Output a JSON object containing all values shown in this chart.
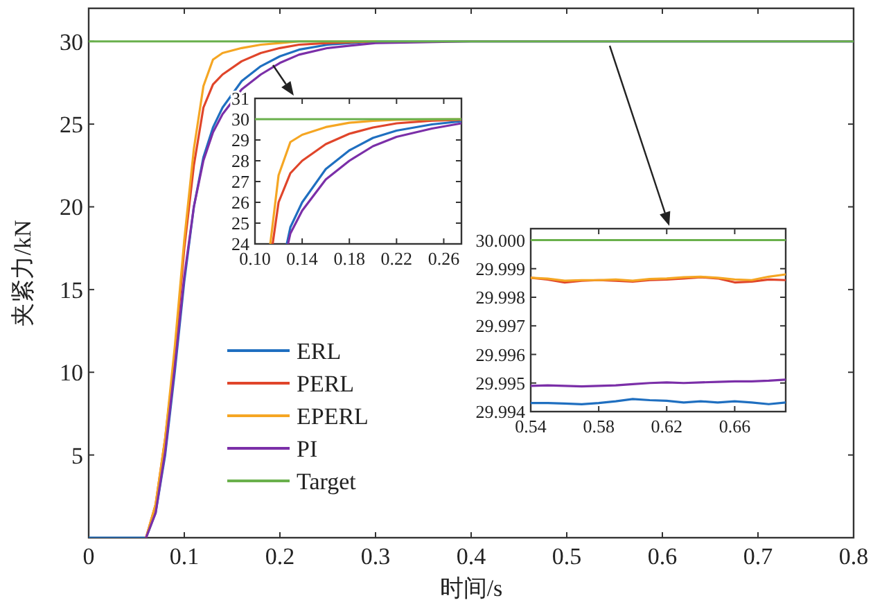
{
  "chart_data": [
    {
      "type": "line",
      "xlabel": "时间/s",
      "ylabel": "夹紧力/kN",
      "xlim": [
        0,
        0.8
      ],
      "ylim": [
        0,
        32
      ],
      "xticks": [
        0,
        0.1,
        0.2,
        0.3,
        0.4,
        0.5,
        0.6,
        0.7,
        0.8
      ],
      "yticks": [
        5,
        10,
        15,
        20,
        25,
        30
      ],
      "grid": false,
      "legend": "bottom left",
      "marker": "none",
      "line_style": "solid",
      "series": [
        {
          "name": "ERL",
          "color": "#1f6fc0",
          "x": [
            0,
            0.06,
            0.07,
            0.08,
            0.09,
            0.1,
            0.11,
            0.12,
            0.13,
            0.14,
            0.16,
            0.18,
            0.2,
            0.22,
            0.25,
            0.3,
            0.4,
            0.8
          ],
          "values": [
            0,
            0,
            1.5,
            5,
            10,
            15.5,
            20,
            23,
            24.8,
            26,
            27.6,
            28.5,
            29.1,
            29.5,
            29.8,
            30,
            30,
            30
          ]
        },
        {
          "name": "PERL",
          "color": "#e0452a",
          "x": [
            0.06,
            0.07,
            0.08,
            0.09,
            0.1,
            0.11,
            0.12,
            0.13,
            0.14,
            0.16,
            0.18,
            0.2,
            0.22,
            0.25,
            0.3
          ],
          "values": [
            0,
            2,
            6,
            11,
            17.5,
            22.5,
            26,
            27.4,
            28,
            28.8,
            29.3,
            29.6,
            29.8,
            29.9,
            30
          ]
        },
        {
          "name": "EPERL",
          "color": "#f5a623",
          "x": [
            0.06,
            0.07,
            0.08,
            0.09,
            0.1,
            0.11,
            0.12,
            0.13,
            0.14,
            0.16,
            0.18,
            0.2,
            0.22,
            0.25,
            0.3
          ],
          "values": [
            0,
            2,
            6,
            11.5,
            18,
            23.5,
            27.3,
            28.9,
            29.3,
            29.6,
            29.8,
            29.9,
            30,
            30,
            30
          ]
        },
        {
          "name": "PI",
          "color": "#7b2fa8",
          "x": [
            0.06,
            0.07,
            0.08,
            0.09,
            0.1,
            0.11,
            0.12,
            0.13,
            0.14,
            0.16,
            0.18,
            0.2,
            0.22,
            0.25,
            0.3,
            0.4,
            0.8
          ],
          "values": [
            0,
            1.5,
            5.2,
            10.3,
            15.8,
            20,
            22.8,
            24.5,
            25.6,
            27.1,
            28,
            28.7,
            29.2,
            29.6,
            29.9,
            30,
            30
          ]
        },
        {
          "name": "Target",
          "color": "#6ab04c",
          "x": [
            0,
            0.8
          ],
          "values": [
            30,
            30
          ]
        }
      ]
    },
    {
      "type": "line",
      "xlim": [
        0.1,
        0.275
      ],
      "ylim": [
        24,
        31
      ],
      "xticks": [
        {
          "value": 0.1,
          "label": "0.10"
        },
        0.14,
        0.18,
        0.22,
        0.26
      ],
      "yticks": [
        24,
        25,
        26,
        27,
        28,
        29,
        30,
        31
      ],
      "grid": false,
      "marker": "none",
      "line_style": "solid",
      "series": [
        {
          "color": "#1f6fc0",
          "x": [
            0.127,
            0.13,
            0.14,
            0.16,
            0.18,
            0.2,
            0.22,
            0.25,
            0.275
          ],
          "values": [
            24,
            24.8,
            26,
            27.6,
            28.5,
            29.1,
            29.45,
            29.75,
            29.9
          ]
        },
        {
          "color": "#e0452a",
          "x": [
            0.115,
            0.12,
            0.13,
            0.14,
            0.16,
            0.18,
            0.2,
            0.22,
            0.25,
            0.275
          ],
          "values": [
            24,
            26,
            27.4,
            28,
            28.8,
            29.3,
            29.6,
            29.8,
            29.93,
            29.97
          ]
        },
        {
          "color": "#f5a623",
          "x": [
            0.113,
            0.12,
            0.13,
            0.14,
            0.16,
            0.18,
            0.2,
            0.22,
            0.25,
            0.275
          ],
          "values": [
            24,
            27.3,
            28.9,
            29.25,
            29.62,
            29.83,
            29.92,
            29.97,
            29.99,
            30
          ]
        },
        {
          "color": "#7b2fa8",
          "x": [
            0.128,
            0.13,
            0.14,
            0.16,
            0.18,
            0.2,
            0.22,
            0.25,
            0.275
          ],
          "values": [
            24,
            24.5,
            25.6,
            27.1,
            28,
            28.7,
            29.15,
            29.55,
            29.8
          ]
        },
        {
          "color": "#6ab04c",
          "x": [
            0.1,
            0.275
          ],
          "values": [
            30,
            30
          ]
        }
      ]
    },
    {
      "type": "line",
      "xlim": [
        0.54,
        0.69
      ],
      "ylim": [
        29.994,
        30.0004
      ],
      "xticks": [
        0.54,
        0.58,
        0.62,
        0.66
      ],
      "yticks": [
        {
          "value": 29.994,
          "label": "29.994"
        },
        {
          "value": 29.995,
          "label": "29.995"
        },
        {
          "value": 29.996,
          "label": "29.996"
        },
        {
          "value": 29.997,
          "label": "29.997"
        },
        {
          "value": 29.998,
          "label": "29.998"
        },
        {
          "value": 29.999,
          "label": "29.999"
        },
        {
          "value": 30,
          "label": "30.000"
        }
      ],
      "grid": false,
      "marker": "none",
      "line_style": "solid",
      "series": [
        {
          "color": "#1f6fc0",
          "x": [
            0.54,
            0.55,
            0.56,
            0.57,
            0.58,
            0.59,
            0.6,
            0.61,
            0.62,
            0.63,
            0.64,
            0.65,
            0.66,
            0.67,
            0.68,
            0.69
          ],
          "values": [
            29.9943,
            29.9943,
            29.99428,
            29.99426,
            29.9943,
            29.99436,
            29.99444,
            29.9944,
            29.99438,
            29.99432,
            29.99436,
            29.99432,
            29.99436,
            29.99432,
            29.99426,
            29.99432
          ]
        },
        {
          "color": "#e0452a",
          "x": [
            0.54,
            0.55,
            0.56,
            0.57,
            0.58,
            0.59,
            0.6,
            0.61,
            0.62,
            0.63,
            0.64,
            0.65,
            0.66,
            0.67,
            0.68,
            0.69
          ],
          "values": [
            29.99868,
            29.99862,
            29.99852,
            29.99858,
            29.9986,
            29.99858,
            29.99855,
            29.9986,
            29.99862,
            29.99866,
            29.9987,
            29.99866,
            29.99852,
            29.99855,
            29.99862,
            29.9986
          ]
        },
        {
          "color": "#f5a623",
          "x": [
            0.54,
            0.55,
            0.56,
            0.57,
            0.58,
            0.59,
            0.6,
            0.61,
            0.62,
            0.63,
            0.64,
            0.65,
            0.66,
            0.67,
            0.68,
            0.69
          ],
          "values": [
            29.99868,
            29.99865,
            29.99858,
            29.9986,
            29.9986,
            29.99862,
            29.99858,
            29.99864,
            29.99866,
            29.9987,
            29.99872,
            29.99868,
            29.99862,
            29.9986,
            29.99872,
            29.9988
          ]
        },
        {
          "color": "#7b2fa8",
          "x": [
            0.54,
            0.55,
            0.56,
            0.57,
            0.58,
            0.59,
            0.6,
            0.61,
            0.62,
            0.63,
            0.64,
            0.65,
            0.66,
            0.67,
            0.68,
            0.69
          ],
          "values": [
            29.9949,
            29.99492,
            29.9949,
            29.99488,
            29.9949,
            29.99492,
            29.99496,
            29.995,
            29.99502,
            29.995,
            29.99502,
            29.99504,
            29.99506,
            29.99506,
            29.99508,
            29.99512
          ]
        },
        {
          "color": "#6ab04c",
          "x": [
            0.54,
            0.69
          ],
          "values": [
            30,
            30
          ]
        }
      ]
    }
  ]
}
